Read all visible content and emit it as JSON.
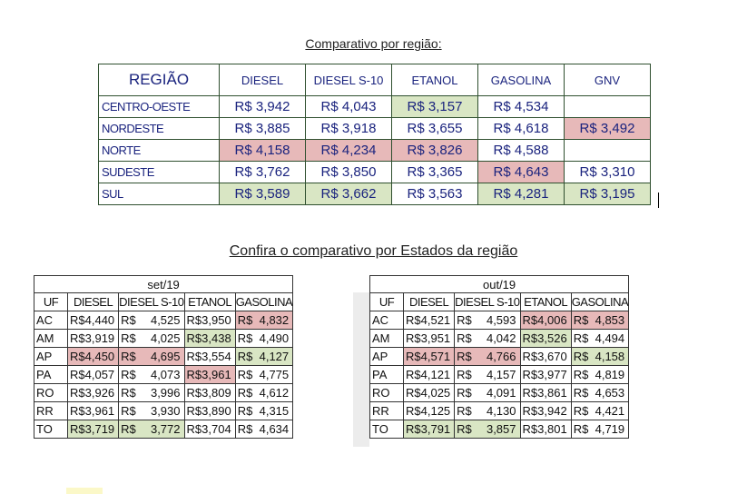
{
  "region_title": "Comparativo por região:",
  "region_table": {
    "headers": [
      "REGIÃO",
      "DIESEL",
      "DIESEL S-10",
      "ETANOL",
      "GASOLINA",
      "GNV"
    ],
    "rows": [
      {
        "region": "CENTRO-OESTE",
        "values": [
          "R$ 3,942",
          "R$ 4,043",
          "R$ 3,157",
          "R$ 4,534",
          ""
        ],
        "hl": [
          "",
          "",
          "g",
          "",
          ""
        ]
      },
      {
        "region": "NORDESTE",
        "values": [
          "R$ 3,885",
          "R$ 3,918",
          "R$ 3,655",
          "R$ 4,618",
          "R$ 3,492"
        ],
        "hl": [
          "",
          "",
          "",
          "",
          "r"
        ]
      },
      {
        "region": "NORTE",
        "values": [
          "R$ 4,158",
          "R$ 4,234",
          "R$ 3,826",
          "R$ 4,588",
          ""
        ],
        "hl": [
          "r",
          "r",
          "r",
          "",
          ""
        ]
      },
      {
        "region": "SUDESTE",
        "values": [
          "R$ 3,762",
          "R$ 3,850",
          "R$ 3,365",
          "R$ 4,643",
          "R$ 3,310"
        ],
        "hl": [
          "",
          "",
          "",
          "r",
          ""
        ]
      },
      {
        "region": "SUL",
        "values": [
          "R$ 3,589",
          "R$ 3,662",
          "R$ 3,563",
          "R$ 4,281",
          "R$ 3,195"
        ],
        "hl": [
          "g",
          "g",
          "",
          "g",
          "g"
        ]
      }
    ]
  },
  "state_title": "Confira o comparativo por Estados da região",
  "state_tables": [
    {
      "month": "set/19",
      "headers": [
        "UF",
        "DIESEL",
        "DIESEL S-10",
        "ETANOL",
        "GASOLINA"
      ],
      "rows": [
        {
          "uf": "AC",
          "values": [
            "4,440",
            "4,525",
            "3,950",
            "4,832"
          ],
          "hl": [
            "",
            "",
            "",
            "r"
          ]
        },
        {
          "uf": "AM",
          "values": [
            "3,919",
            "4,025",
            "3,438",
            "4,490"
          ],
          "hl": [
            "",
            "",
            "g",
            ""
          ]
        },
        {
          "uf": "AP",
          "values": [
            "4,450",
            "4,695",
            "3,554",
            "4,127"
          ],
          "hl": [
            "r",
            "r",
            "",
            "g"
          ]
        },
        {
          "uf": "PA",
          "values": [
            "4,057",
            "4,073",
            "3,961",
            "4,775"
          ],
          "hl": [
            "",
            "",
            "r",
            ""
          ]
        },
        {
          "uf": "RO",
          "values": [
            "3,926",
            "3,996",
            "3,809",
            "4,612"
          ],
          "hl": [
            "",
            "",
            "",
            ""
          ]
        },
        {
          "uf": "RR",
          "values": [
            "3,961",
            "3,930",
            "3,890",
            "4,315"
          ],
          "hl": [
            "",
            "",
            "",
            ""
          ]
        },
        {
          "uf": "TO",
          "values": [
            "3,719",
            "3,772",
            "3,704",
            "4,634"
          ],
          "hl": [
            "g",
            "g",
            "",
            ""
          ]
        }
      ]
    },
    {
      "month": "out/19",
      "headers": [
        "UF",
        "DIESEL",
        "DIESEL S-10",
        "ETANOL",
        "GASOLINA"
      ],
      "rows": [
        {
          "uf": "AC",
          "values": [
            "4,521",
            "4,593",
            "4,006",
            "4,853"
          ],
          "hl": [
            "",
            "",
            "r",
            "r"
          ]
        },
        {
          "uf": "AM",
          "values": [
            "3,951",
            "4,042",
            "3,526",
            "4,494"
          ],
          "hl": [
            "",
            "",
            "g",
            ""
          ]
        },
        {
          "uf": "AP",
          "values": [
            "4,571",
            "4,766",
            "3,670",
            "4,158"
          ],
          "hl": [
            "r",
            "r",
            "",
            "g"
          ]
        },
        {
          "uf": "PA",
          "values": [
            "4,121",
            "4,157",
            "3,977",
            "4,819"
          ],
          "hl": [
            "",
            "",
            "",
            ""
          ]
        },
        {
          "uf": "RO",
          "values": [
            "4,025",
            "4,091",
            "3,861",
            "4,653"
          ],
          "hl": [
            "",
            "",
            "",
            ""
          ]
        },
        {
          "uf": "RR",
          "values": [
            "4,125",
            "4,130",
            "3,942",
            "4,421"
          ],
          "hl": [
            "",
            "",
            "",
            ""
          ]
        },
        {
          "uf": "TO",
          "values": [
            "3,791",
            "3,857",
            "3,801",
            "4,719"
          ],
          "hl": [
            "g",
            "g",
            "",
            ""
          ]
        }
      ]
    }
  ],
  "currency": "R$"
}
